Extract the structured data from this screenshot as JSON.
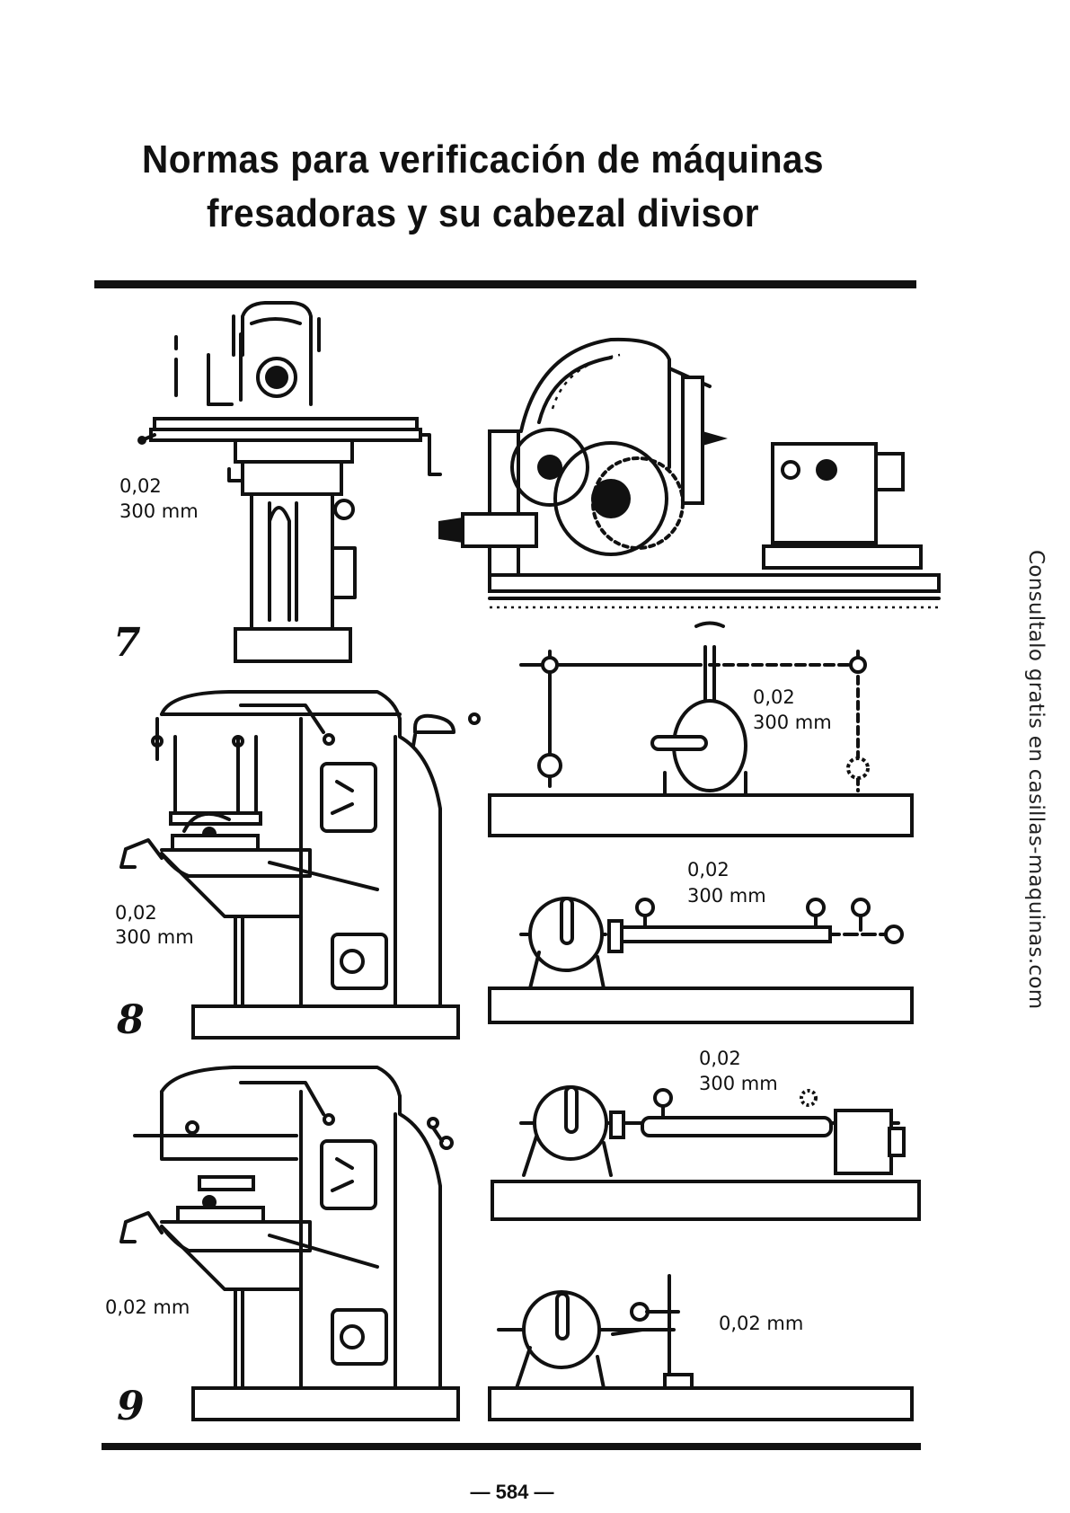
{
  "header": {
    "title_line1": "Normas para verificación de máquinas",
    "title_line2": "fresadoras y su cabezal divisor"
  },
  "figures": [
    {
      "number": "7",
      "tolerance_value": "0,02",
      "tolerance_length": "300 mm"
    },
    {
      "number": "8",
      "tolerance_value": "0,02",
      "tolerance_length": "300 mm"
    },
    {
      "number": "9",
      "tolerance_value": "0,02 mm"
    }
  ],
  "right_panels": [
    {
      "tolerance_value": "0,02",
      "tolerance_length": "300 mm"
    },
    {
      "tolerance_value": "0,02",
      "tolerance_length": "300 mm"
    },
    {
      "tolerance_value": "0,02",
      "tolerance_length": "300 mm"
    },
    {
      "tolerance_value": "0,02 mm"
    }
  ],
  "footer": {
    "page_number": "— 584 —"
  },
  "side_note": "Consultalo gratis en casillas-maquinas.com",
  "colors": {
    "ink": "#111111",
    "paper": "#ffffff"
  }
}
